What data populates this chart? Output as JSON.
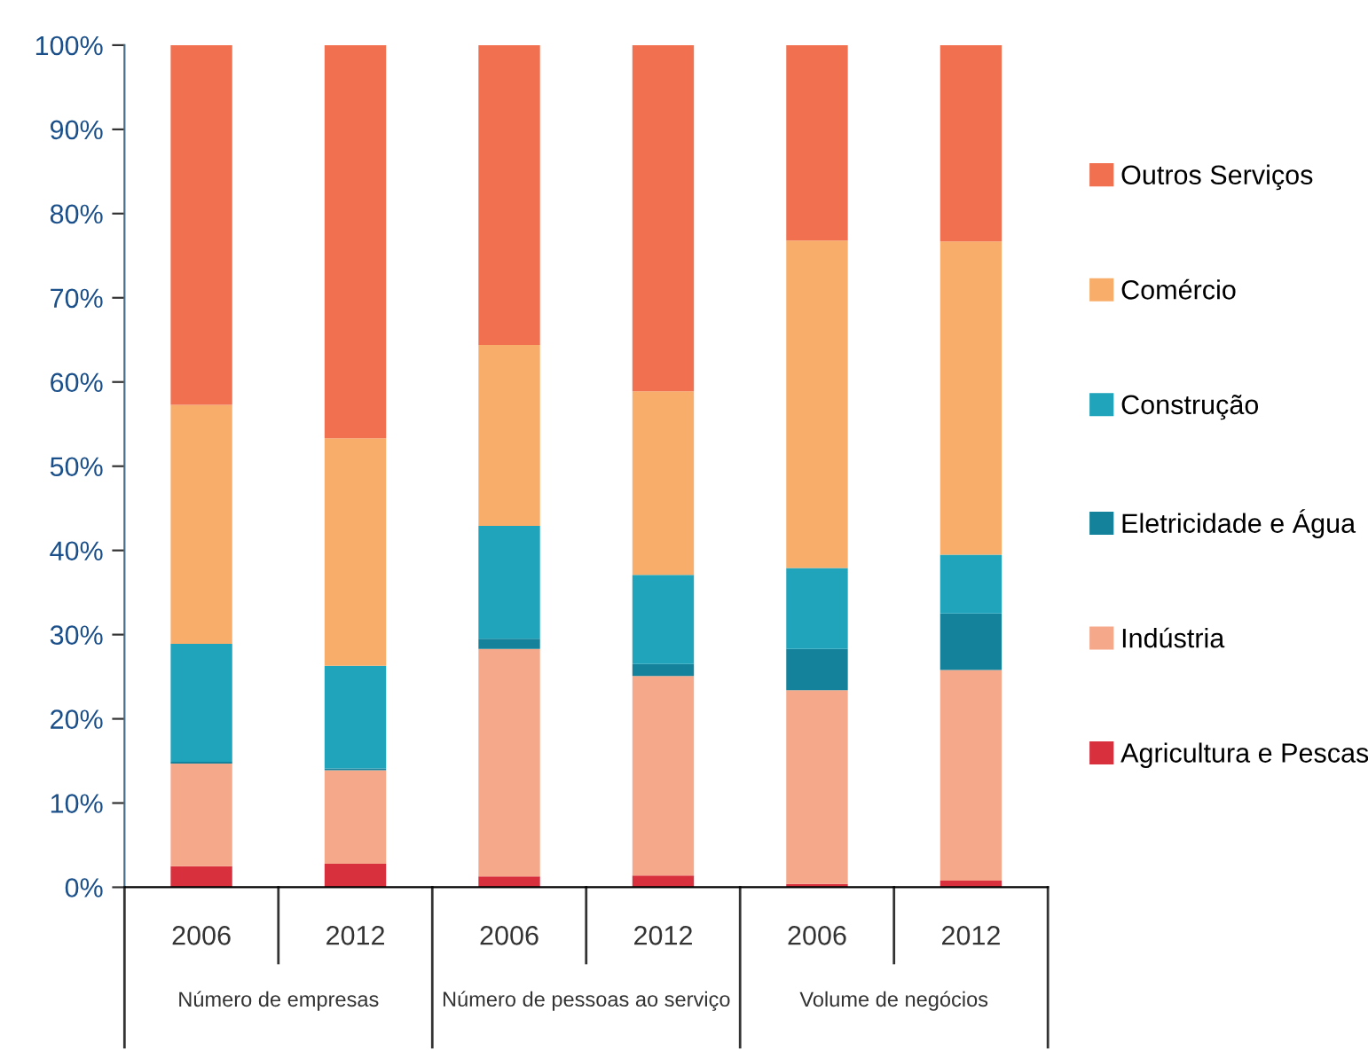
{
  "chart_data": {
    "type": "bar",
    "stacked": true,
    "categories": [
      "2006",
      "2012",
      "2006",
      "2012",
      "2006",
      "2012"
    ],
    "annotations": [
      "Número de empresas",
      "Número de pessoas ao serviço",
      "Volume de negócios"
    ],
    "series": [
      {
        "name": "Agricultura e Pescas",
        "color": "#d9303e",
        "values": [
          2.5,
          2.8,
          1.3,
          1.4,
          0.4,
          0.8
        ]
      },
      {
        "name": "Indústria",
        "color": "#f6a88a",
        "values": [
          12.2,
          11.1,
          27.0,
          23.7,
          23.0,
          25.0
        ]
      },
      {
        "name": "Eletricidade e Água",
        "color": "#13829a",
        "values": [
          0.2,
          0.2,
          1.2,
          1.4,
          4.9,
          6.7
        ]
      },
      {
        "name": "Construção",
        "color": "#20a4bc",
        "values": [
          14.0,
          12.2,
          13.4,
          10.6,
          9.6,
          7.0
        ]
      },
      {
        "name": "Comércio",
        "color": "#f8ae6a",
        "values": [
          28.4,
          27.0,
          21.5,
          21.8,
          38.9,
          37.2
        ]
      },
      {
        "name": "Outros Serviços",
        "color": "#f07050",
        "values": [
          42.7,
          46.7,
          35.6,
          41.1,
          23.2,
          23.3
        ]
      }
    ],
    "ylim": [
      0,
      100
    ],
    "yticks": [
      {
        "value": 0,
        "label": "0%"
      },
      {
        "value": 10,
        "label": "10%"
      },
      {
        "value": 20,
        "label": "20%"
      },
      {
        "value": 30,
        "label": "30%"
      },
      {
        "value": 40,
        "label": "40%"
      },
      {
        "value": 50,
        "label": "50%"
      },
      {
        "value": 60,
        "label": "60%"
      },
      {
        "value": 70,
        "label": "70%"
      },
      {
        "value": 80,
        "label": "80%"
      },
      {
        "value": 90,
        "label": "90%"
      },
      {
        "value": 100,
        "label": "100%"
      }
    ],
    "grid": false,
    "legend": "right"
  }
}
